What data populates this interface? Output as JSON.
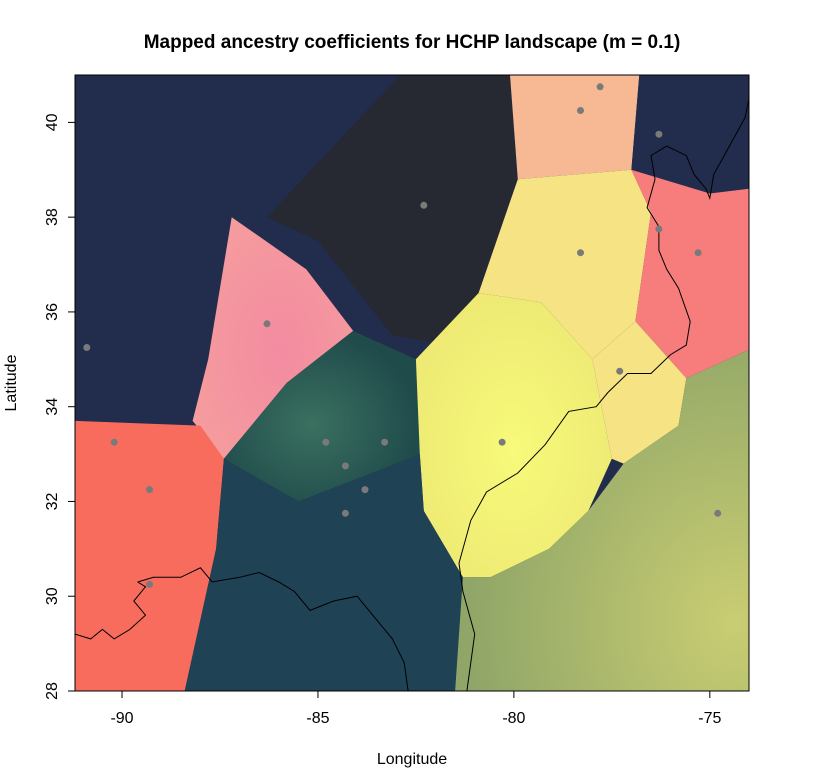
{
  "title": "Mapped ancestry coefficients for HCHP landscape (m = 0.1)",
  "xlabel": "Longitude",
  "ylabel": "Latitude",
  "xlim": [
    -91.2,
    -74
  ],
  "ylim": [
    28,
    41
  ],
  "x_ticks": [
    -90,
    -85,
    -80,
    -75
  ],
  "y_ticks": [
    28,
    30,
    32,
    34,
    36,
    38,
    40
  ],
  "colors": {
    "navy": "#222c4c",
    "charcoal": "#262932",
    "peach": "#f6b994",
    "yellow": "#f5e384",
    "salmon_pink": "#f5919c",
    "coral": "#f77d7d",
    "teal": "#1f4b4b",
    "slate_teal": "#1f4255",
    "bright_yellow": "#f3f377",
    "olive": "#9aab6c",
    "tomato": "#f86c5e",
    "sample_point": "#7a7a7a"
  },
  "chart_data": {
    "type": "map",
    "title": "Mapped ancestry coefficients for HCHP landscape (m = 0.1)",
    "xlabel": "Longitude",
    "ylabel": "Latitude",
    "xlim": [
      -91.2,
      -74
    ],
    "ylim": [
      28,
      41
    ],
    "grid": false,
    "sample_points": [
      {
        "lon": -90.9,
        "lat": 35.25
      },
      {
        "lon": -90.2,
        "lat": 33.25
      },
      {
        "lon": -89.3,
        "lat": 32.25
      },
      {
        "lon": -89.3,
        "lat": 30.25
      },
      {
        "lon": -86.3,
        "lat": 35.75
      },
      {
        "lon": -84.8,
        "lat": 33.25
      },
      {
        "lon": -84.3,
        "lat": 32.75
      },
      {
        "lon": -83.8,
        "lat": 32.25
      },
      {
        "lon": -84.3,
        "lat": 31.75
      },
      {
        "lon": -83.3,
        "lat": 33.25
      },
      {
        "lon": -82.3,
        "lat": 38.25
      },
      {
        "lon": -80.3,
        "lat": 33.25
      },
      {
        "lon": -78.3,
        "lat": 40.25
      },
      {
        "lon": -77.8,
        "lat": 40.75
      },
      {
        "lon": -78.3,
        "lat": 37.25
      },
      {
        "lon": -76.3,
        "lat": 39.75
      },
      {
        "lon": -76.3,
        "lat": 37.75
      },
      {
        "lon": -75.3,
        "lat": 37.25
      },
      {
        "lon": -77.3,
        "lat": 34.75
      },
      {
        "lon": -74.8,
        "lat": 31.75
      }
    ],
    "regions": [
      {
        "color": "navy",
        "polygon": [
          [
            -91.2,
            41
          ],
          [
            -82.9,
            41
          ],
          [
            -82.7,
            38.3
          ],
          [
            -86.0,
            36.6
          ],
          [
            -87.5,
            35.0
          ],
          [
            -88.0,
            33.6
          ],
          [
            -91.2,
            33.7
          ]
        ]
      },
      {
        "color": "charcoal",
        "polygon": [
          [
            -82.9,
            41
          ],
          [
            -80.1,
            41
          ],
          [
            -79.9,
            38.8
          ],
          [
            -80.9,
            36.4
          ],
          [
            -81.6,
            35.3
          ],
          [
            -83.1,
            35.5
          ],
          [
            -85.0,
            37.5
          ],
          [
            -86.3,
            38.0
          ]
        ]
      },
      {
        "color": "peach",
        "polygon": [
          [
            -80.1,
            41
          ],
          [
            -76.8,
            41
          ],
          [
            -77.0,
            39.0
          ],
          [
            -79.9,
            38.8
          ]
        ]
      },
      {
        "color": "navy",
        "polygon": [
          [
            -76.8,
            41
          ],
          [
            -74,
            41
          ],
          [
            -74,
            38.6
          ],
          [
            -75.0,
            38.5
          ],
          [
            -77.0,
            39.0
          ]
        ]
      },
      {
        "color": "salmon_pink",
        "polygon": [
          [
            -87.2,
            38.0
          ],
          [
            -85.3,
            36.9
          ],
          [
            -84.1,
            35.6
          ],
          [
            -85.8,
            34.5
          ],
          [
            -87.4,
            32.9
          ],
          [
            -88.2,
            33.7
          ],
          [
            -87.8,
            35.0
          ]
        ]
      },
      {
        "color": "yellow",
        "polygon": [
          [
            -79.9,
            38.8
          ],
          [
            -77.0,
            39.0
          ],
          [
            -76.5,
            38.1
          ],
          [
            -76.9,
            35.8
          ],
          [
            -78.0,
            35.0
          ],
          [
            -79.3,
            36.2
          ],
          [
            -80.9,
            36.4
          ]
        ]
      },
      {
        "color": "coral",
        "polygon": [
          [
            -77.0,
            39.0
          ],
          [
            -75.0,
            38.5
          ],
          [
            -74,
            38.6
          ],
          [
            -74,
            35.2
          ],
          [
            -75.6,
            34.6
          ],
          [
            -76.9,
            35.8
          ],
          [
            -76.5,
            38.1
          ]
        ]
      },
      {
        "color": "teal",
        "polygon": [
          [
            -84.1,
            35.6
          ],
          [
            -82.5,
            35.0
          ],
          [
            -82.4,
            33.0
          ],
          [
            -83.0,
            32.8
          ],
          [
            -85.5,
            32.0
          ],
          [
            -87.4,
            32.9
          ],
          [
            -85.8,
            34.5
          ]
        ]
      },
      {
        "color": "bright_yellow",
        "polygon": [
          [
            -82.5,
            35.0
          ],
          [
            -80.9,
            36.4
          ],
          [
            -79.3,
            36.2
          ],
          [
            -78.0,
            35.0
          ],
          [
            -77.5,
            32.9
          ],
          [
            -78.1,
            31.8
          ],
          [
            -79.1,
            31.0
          ],
          [
            -80.6,
            30.4
          ],
          [
            -81.3,
            30.4
          ],
          [
            -82.3,
            31.8
          ],
          [
            -82.4,
            33.0
          ]
        ]
      },
      {
        "color": "yellow",
        "polygon": [
          [
            -78.0,
            35.0
          ],
          [
            -76.9,
            35.8
          ],
          [
            -75.6,
            34.6
          ],
          [
            -75.8,
            33.6
          ],
          [
            -77.2,
            32.8
          ],
          [
            -77.5,
            32.9
          ]
        ]
      },
      {
        "color": "tomato",
        "polygon": [
          [
            -91.2,
            33.7
          ],
          [
            -88.0,
            33.6
          ],
          [
            -87.4,
            32.9
          ],
          [
            -87.6,
            31.0
          ],
          [
            -88.4,
            28.0
          ],
          [
            -91.2,
            28.0
          ]
        ]
      },
      {
        "color": "slate_teal",
        "polygon": [
          [
            -87.4,
            32.9
          ],
          [
            -85.5,
            32.0
          ],
          [
            -83.0,
            32.8
          ],
          [
            -82.4,
            33.0
          ],
          [
            -82.3,
            31.8
          ],
          [
            -81.3,
            30.4
          ],
          [
            -81.5,
            28.0
          ],
          [
            -88.4,
            28.0
          ],
          [
            -87.6,
            31.0
          ]
        ]
      },
      {
        "color": "olive",
        "polygon": [
          [
            -81.5,
            28.0
          ],
          [
            -81.3,
            30.4
          ],
          [
            -80.6,
            30.4
          ],
          [
            -79.1,
            31.0
          ],
          [
            -78.1,
            31.8
          ],
          [
            -77.2,
            32.8
          ],
          [
            -75.8,
            33.6
          ],
          [
            -75.6,
            34.6
          ],
          [
            -74,
            35.2
          ],
          [
            -74,
            28.0
          ]
        ]
      }
    ],
    "coastline": [
      [
        [
          -89.6,
          30.3
        ],
        [
          -89.2,
          30.4
        ],
        [
          -88.5,
          30.4
        ],
        [
          -88.0,
          30.6
        ],
        [
          -87.7,
          30.3
        ],
        [
          -87.0,
          30.4
        ],
        [
          -86.5,
          30.5
        ],
        [
          -86.0,
          30.3
        ],
        [
          -85.6,
          30.1
        ],
        [
          -85.2,
          29.7
        ],
        [
          -84.6,
          29.9
        ],
        [
          -84.0,
          30.0
        ],
        [
          -83.6,
          29.6
        ],
        [
          -83.1,
          29.1
        ],
        [
          -82.8,
          28.6
        ],
        [
          -82.7,
          28.0
        ]
      ],
      [
        [
          -91.2,
          29.2
        ],
        [
          -90.8,
          29.1
        ],
        [
          -90.5,
          29.3
        ],
        [
          -90.2,
          29.1
        ],
        [
          -89.8,
          29.3
        ],
        [
          -89.4,
          29.6
        ],
        [
          -89.7,
          29.9
        ],
        [
          -89.4,
          30.2
        ],
        [
          -89.6,
          30.3
        ]
      ],
      [
        [
          -81.2,
          28.0
        ],
        [
          -81.0,
          29.2
        ],
        [
          -81.3,
          30.1
        ],
        [
          -81.4,
          30.7
        ],
        [
          -81.1,
          31.6
        ],
        [
          -80.7,
          32.2
        ],
        [
          -79.9,
          32.6
        ],
        [
          -79.2,
          33.2
        ],
        [
          -78.6,
          33.9
        ],
        [
          -77.9,
          34.0
        ],
        [
          -77.6,
          34.3
        ],
        [
          -77.1,
          34.7
        ],
        [
          -76.5,
          34.7
        ],
        [
          -76.0,
          35.1
        ],
        [
          -75.6,
          35.3
        ],
        [
          -75.5,
          35.8
        ],
        [
          -75.8,
          36.5
        ],
        [
          -76.1,
          36.9
        ],
        [
          -76.3,
          37.3
        ],
        [
          -76.3,
          37.8
        ],
        [
          -76.6,
          38.2
        ],
        [
          -76.4,
          38.8
        ],
        [
          -76.5,
          39.3
        ],
        [
          -76.1,
          39.5
        ],
        [
          -75.6,
          39.3
        ],
        [
          -75.4,
          38.9
        ],
        [
          -75.1,
          38.6
        ],
        [
          -75.0,
          38.4
        ],
        [
          -74.9,
          38.9
        ],
        [
          -74.5,
          39.5
        ],
        [
          -74.1,
          40.1
        ],
        [
          -74.0,
          40.5
        ]
      ]
    ]
  }
}
